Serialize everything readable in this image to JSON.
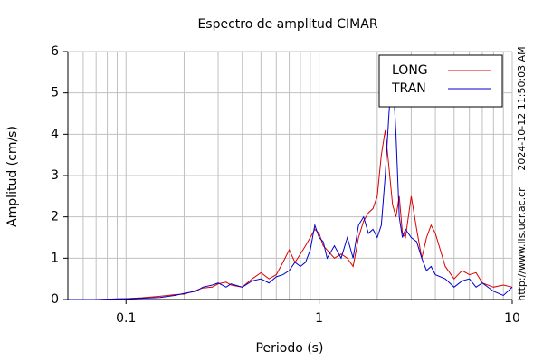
{
  "chart_data": {
    "type": "line",
    "title": "Espectro de amplitud CIMAR",
    "x_label": "Periodo (s)",
    "y_label": "Amplitud (cm/s)",
    "timestamp": "2024-10-12 11:50:03 AM",
    "source": "http://www.lis.ucr.ac.cr",
    "log_x": true,
    "grid": true,
    "legend": "upper right",
    "xlim": [
      0.05,
      10
    ],
    "ylim": [
      0,
      6
    ],
    "xticks": [
      0.1,
      1,
      10
    ],
    "x_minor_ticks": [
      0.06,
      0.07,
      0.08,
      0.09,
      0.2,
      0.3,
      0.4,
      0.5,
      0.6,
      0.7,
      0.8,
      0.9,
      2,
      3,
      4,
      5,
      6,
      7,
      8,
      9
    ],
    "yticks": [
      0,
      1,
      2,
      3,
      4,
      5,
      6
    ],
    "x": [
      0.05,
      0.07,
      0.1,
      0.12,
      0.15,
      0.18,
      0.2,
      0.23,
      0.25,
      0.28,
      0.3,
      0.33,
      0.35,
      0.4,
      0.45,
      0.5,
      0.55,
      0.6,
      0.65,
      0.7,
      0.75,
      0.8,
      0.85,
      0.9,
      0.95,
      1.0,
      1.05,
      1.1,
      1.2,
      1.3,
      1.4,
      1.5,
      1.6,
      1.7,
      1.8,
      1.9,
      2.0,
      2.1,
      2.2,
      2.3,
      2.4,
      2.5,
      2.6,
      2.7,
      2.8,
      3.0,
      3.2,
      3.4,
      3.6,
      3.8,
      4.0,
      4.5,
      5,
      5.5,
      6,
      6.5,
      7,
      8,
      9,
      10
    ],
    "series": [
      {
        "name": "LONG",
        "color": "#dd0000",
        "values": [
          0,
          0,
          0.02,
          0.04,
          0.08,
          0.12,
          0.13,
          0.22,
          0.28,
          0.3,
          0.38,
          0.42,
          0.35,
          0.3,
          0.5,
          0.65,
          0.5,
          0.6,
          0.9,
          1.2,
          0.9,
          1.1,
          1.3,
          1.5,
          1.7,
          1.6,
          1.3,
          1.2,
          1.0,
          1.1,
          1.0,
          0.8,
          1.5,
          1.9,
          2.1,
          2.2,
          2.5,
          3.5,
          4.1,
          3.2,
          2.3,
          2.0,
          2.5,
          1.6,
          1.5,
          2.5,
          1.7,
          1.0,
          1.5,
          1.8,
          1.6,
          0.8,
          0.5,
          0.7,
          0.6,
          0.65,
          0.4,
          0.3,
          0.35,
          0.3
        ]
      },
      {
        "name": "TRAN",
        "color": "#0000cc",
        "values": [
          0,
          0,
          0.02,
          0.03,
          0.05,
          0.1,
          0.15,
          0.2,
          0.3,
          0.35,
          0.4,
          0.3,
          0.38,
          0.3,
          0.45,
          0.5,
          0.4,
          0.55,
          0.6,
          0.7,
          0.9,
          0.8,
          0.9,
          1.2,
          1.8,
          1.5,
          1.4,
          1.0,
          1.3,
          1.0,
          1.5,
          1.0,
          1.8,
          2.0,
          1.6,
          1.7,
          1.5,
          1.8,
          3.0,
          4.5,
          5.6,
          4.0,
          2.0,
          1.5,
          1.7,
          1.5,
          1.4,
          1.0,
          0.7,
          0.8,
          0.6,
          0.5,
          0.3,
          0.45,
          0.5,
          0.3,
          0.4,
          0.2,
          0.1,
          0.3
        ]
      }
    ]
  }
}
